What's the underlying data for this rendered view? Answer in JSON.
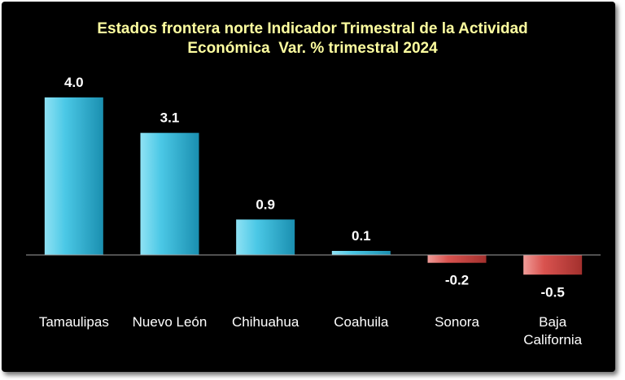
{
  "chart_data": {
    "type": "bar",
    "title_lines": [
      "Estados frontera norte Indicador Trimestral de la Actividad",
      "Económica  Var. % trimestral 2024"
    ],
    "categories": [
      [
        "Tamaulipas"
      ],
      [
        "Nuevo León"
      ],
      [
        "Chihuahua"
      ],
      [
        "Coahuila"
      ],
      [
        "Sonora"
      ],
      [
        "Baja",
        "California"
      ]
    ],
    "values": [
      4.0,
      3.1,
      0.9,
      0.1,
      -0.2,
      -0.5
    ],
    "value_labels": [
      "4.0",
      "3.1",
      "0.9",
      "0.1",
      "-0.2",
      "-0.5"
    ],
    "xlabel": "",
    "ylabel": "",
    "ylim": [
      -0.5,
      4.0
    ],
    "grid": false,
    "legend": "none",
    "colors": {
      "positive": "#4bc8e6",
      "positive_light": "#8fe2f4",
      "positive_dark": "#1a8fb0",
      "negative": "#d9534f",
      "negative_light": "#f09c98",
      "negative_dark": "#a3302d",
      "background": "#000000",
      "title": "#ffffa0",
      "text": "#ffffff",
      "axis": "#a0a0a0"
    }
  }
}
